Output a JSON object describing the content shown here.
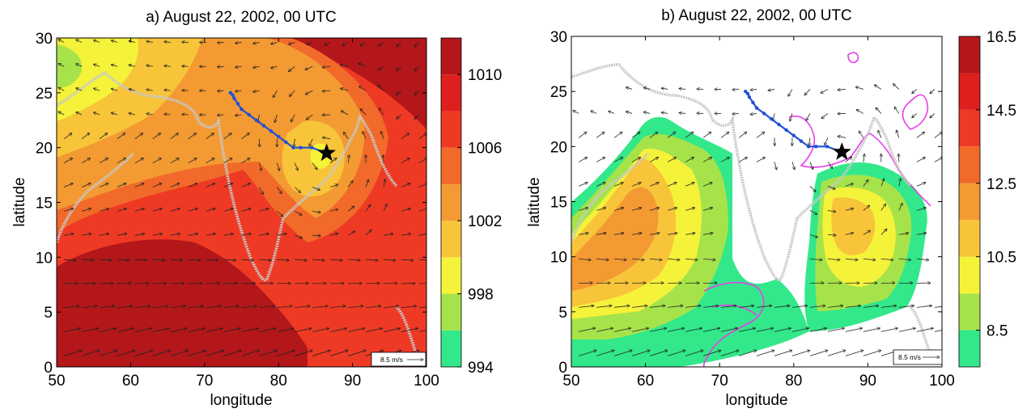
{
  "chart_data": [
    {
      "type": "heatmap",
      "title": "a) August 22, 2002, 00 UTC",
      "xlabel": "longitude",
      "ylabel": "latitude",
      "xlim": [
        50,
        100
      ],
      "ylim": [
        0,
        30
      ],
      "xticks": [
        "50",
        "60",
        "70",
        "80",
        "90",
        "100"
      ],
      "yticks": [
        "0",
        "5",
        "10",
        "15",
        "20",
        "25",
        "30"
      ],
      "colorbar": {
        "range": [
          994,
          1012
        ],
        "labels": [
          "994",
          "998",
          "1002",
          "1006",
          "1010"
        ],
        "label_values": [
          994,
          998,
          1002,
          1006,
          1010
        ],
        "levels": [
          994,
          996,
          998,
          1000,
          1002,
          1004,
          1006,
          1008,
          1010,
          1012
        ],
        "colors": [
          "#33e88a",
          "#a6e34a",
          "#f5f23a",
          "#f8c43a",
          "#f39a33",
          "#f16a2a",
          "#ee3a24",
          "#dd1f1e",
          "#b3171a"
        ]
      },
      "reference_vector": "8.5 m/s",
      "storm_track": {
        "lon": [
          86.5,
          84.5,
          83.0,
          82.0,
          81.0,
          80.0,
          79.0,
          78.0,
          77.0,
          76.0,
          75.0,
          74.5,
          74.0,
          73.8,
          73.5
        ],
        "lat": [
          19.5,
          20.0,
          20.0,
          20.0,
          20.5,
          21.0,
          21.5,
          22.0,
          22.5,
          23.0,
          23.5,
          24.0,
          24.5,
          24.8,
          25.0
        ]
      },
      "storm_center": {
        "lon": 86.5,
        "lat": 19.5
      }
    },
    {
      "type": "heatmap",
      "title": "b) August 22, 2002, 00 UTC",
      "xlabel": "longitude",
      "ylabel": "latitude",
      "xlim": [
        50,
        100
      ],
      "ylim": [
        0,
        30
      ],
      "xticks": [
        "50",
        "60",
        "70",
        "80",
        "90",
        "100"
      ],
      "yticks": [
        "0",
        "5",
        "10",
        "15",
        "20",
        "25",
        "30"
      ],
      "colorbar": {
        "range": [
          7.5,
          16.5
        ],
        "labels": [
          "8.5",
          "10.5",
          "12.5",
          "14.5",
          "16.5"
        ],
        "label_values": [
          8.5,
          10.5,
          12.5,
          14.5,
          16.5
        ],
        "levels": [
          7.5,
          8.5,
          9.5,
          10.5,
          11.5,
          12.5,
          13.5,
          14.5,
          15.5,
          16.5
        ],
        "colors": [
          "#33e88a",
          "#a6e34a",
          "#f5f23a",
          "#f8c43a",
          "#f39a33",
          "#f16a2a",
          "#ee3a24",
          "#dd1f1e",
          "#b3171a"
        ]
      },
      "reference_vector": "8.5 m/s",
      "storm_track": {
        "lon": [
          86.5,
          84.5,
          83.0,
          82.0,
          81.0,
          80.0,
          79.0,
          78.0,
          77.0,
          76.0,
          75.0,
          74.5,
          74.0,
          73.8,
          73.5
        ],
        "lat": [
          19.5,
          20.0,
          20.0,
          20.0,
          20.5,
          21.0,
          21.5,
          22.0,
          22.5,
          23.0,
          23.5,
          24.0,
          24.5,
          24.8,
          25.0
        ]
      },
      "storm_center": {
        "lon": 86.5,
        "lat": 19.5
      }
    }
  ]
}
